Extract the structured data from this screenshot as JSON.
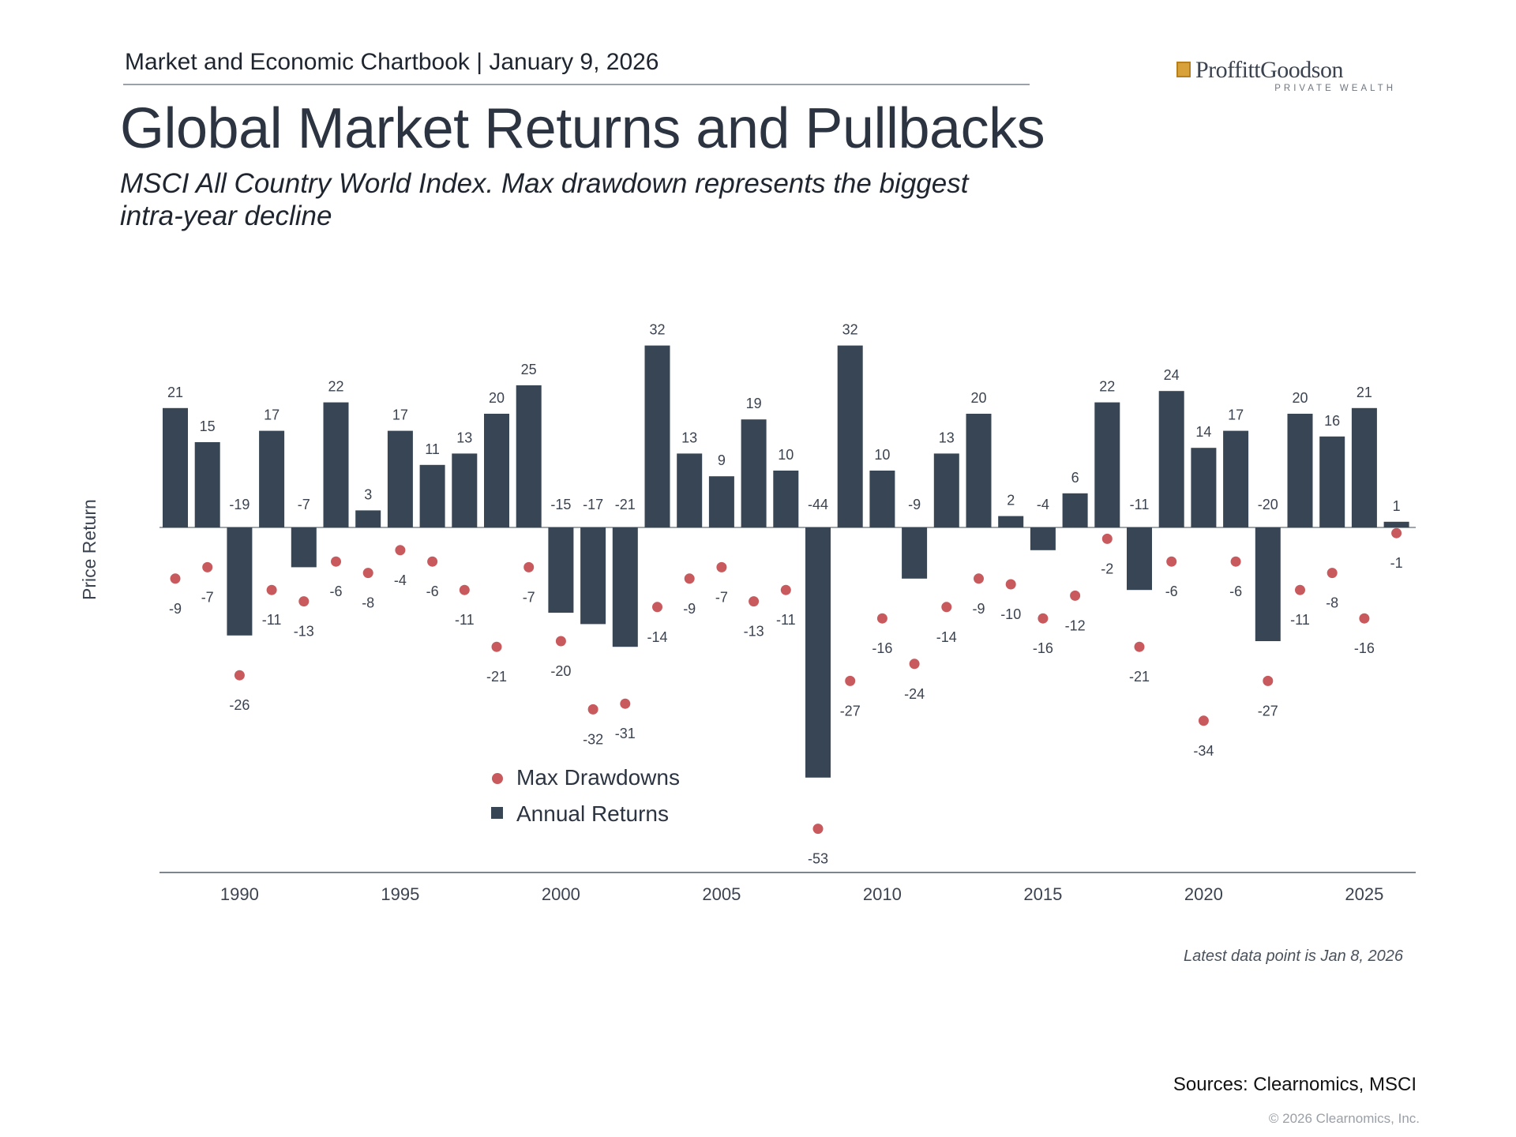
{
  "header": {
    "text": "Market and Economic Chartbook | January 9, 2026"
  },
  "logo": {
    "name": "ProffittGoodson",
    "tagline": "PRIVATE WEALTH"
  },
  "title": "Global Market Returns and Pullbacks",
  "subtitle": "MSCI All Country World Index. Max drawdown represents the biggest intra-year decline",
  "chart_data": {
    "type": "bar",
    "title": "Global Market Returns and Pullbacks",
    "ylabel": "Price Return",
    "xlabel": "",
    "ylim": [
      -55,
      35
    ],
    "years": [
      1988,
      1989,
      1990,
      1991,
      1992,
      1993,
      1994,
      1995,
      1996,
      1997,
      1998,
      1999,
      2000,
      2001,
      2002,
      2003,
      2004,
      2005,
      2006,
      2007,
      2008,
      2009,
      2010,
      2011,
      2012,
      2013,
      2014,
      2015,
      2016,
      2017,
      2018,
      2019,
      2020,
      2021,
      2022,
      2023,
      2024,
      2025,
      2026
    ],
    "x_ticks": [
      "1990",
      "1995",
      "2000",
      "2005",
      "2010",
      "2015",
      "2020",
      "2025"
    ],
    "x_tick_years": [
      1990,
      1995,
      2000,
      2005,
      2010,
      2015,
      2020,
      2025
    ],
    "series": [
      {
        "name": "Annual Returns",
        "type": "bar",
        "color": "#374554",
        "values": [
          21,
          15,
          -19,
          17,
          -7,
          22,
          3,
          17,
          11,
          13,
          20,
          25,
          -15,
          -17,
          -21,
          32,
          13,
          9,
          19,
          10,
          -44,
          32,
          10,
          -9,
          13,
          20,
          2,
          -4,
          6,
          22,
          -11,
          24,
          14,
          17,
          -20,
          20,
          16,
          21,
          1
        ]
      },
      {
        "name": "Max Drawdowns",
        "type": "scatter",
        "color": "#c85a5e",
        "values": [
          -9,
          -7,
          -26,
          -11,
          -13,
          -6,
          -8,
          -4,
          -6,
          -11,
          -21,
          -7,
          -20,
          -32,
          -31,
          -14,
          -9,
          -7,
          -13,
          -11,
          -53,
          -27,
          -16,
          -24,
          -14,
          -9,
          -10,
          -16,
          -12,
          -2,
          -21,
          -6,
          -34,
          -6,
          -27,
          -11,
          -8,
          -16,
          -1
        ]
      }
    ],
    "legend": [
      "Max Drawdowns",
      "Annual Returns"
    ],
    "legend_position": "bottom-left"
  },
  "footer": {
    "note": "Latest data point is Jan 8, 2026",
    "sources": "Sources: Clearnomics, MSCI",
    "copyright": "© 2026 Clearnomics, Inc."
  }
}
